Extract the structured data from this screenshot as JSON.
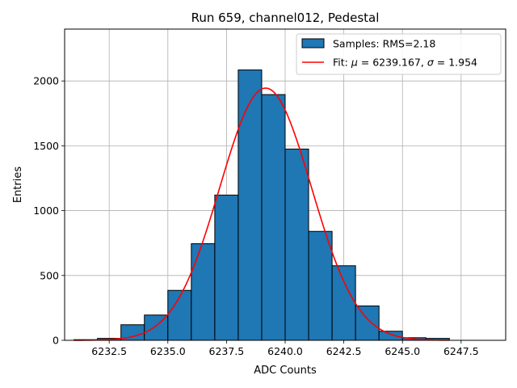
{
  "chart_data": {
    "type": "bar",
    "title": "Run 659, channel012, Pedestal",
    "xlabel": "ADC Counts",
    "ylabel": "Entries",
    "xlim": [
      6230.6,
      6249.4
    ],
    "ylim": [
      0,
      2400
    ],
    "grid": true,
    "legend_placement": "top-right",
    "x_ticks": [
      6232.5,
      6235.0,
      6237.5,
      6240.0,
      6242.5,
      6245.0,
      6247.5
    ],
    "x_tick_labels": [
      "6232.5",
      "6235.0",
      "6237.5",
      "6240.0",
      "6242.5",
      "6245.0",
      "6247.5"
    ],
    "y_ticks": [
      0,
      500,
      1000,
      1500,
      2000
    ],
    "y_tick_labels": [
      "0",
      "500",
      "1000",
      "1500",
      "2000"
    ],
    "histogram": {
      "name": "Samples: RMS=2.18",
      "color": "#1f77b4",
      "edge_color": "#000000",
      "bin_edges": [
        6231,
        6232,
        6233,
        6234,
        6235,
        6236,
        6237,
        6238,
        6239,
        6240,
        6241,
        6242,
        6243,
        6244,
        6245,
        6246,
        6247,
        6248,
        6249
      ],
      "counts": [
        5,
        15,
        120,
        195,
        385,
        745,
        1120,
        2085,
        1895,
        1475,
        840,
        575,
        265,
        70,
        20,
        15,
        0,
        0
      ]
    },
    "fit": {
      "name_prefix": "Fit: ",
      "mu_symbol": "μ",
      "mu_value": "6239.167",
      "sigma_symbol": "σ",
      "sigma_value": "1.954",
      "color": "#ff0000",
      "mu": 6239.167,
      "sigma": 1.954,
      "amplitude": 1945,
      "x_range": [
        6231,
        6247
      ]
    }
  }
}
